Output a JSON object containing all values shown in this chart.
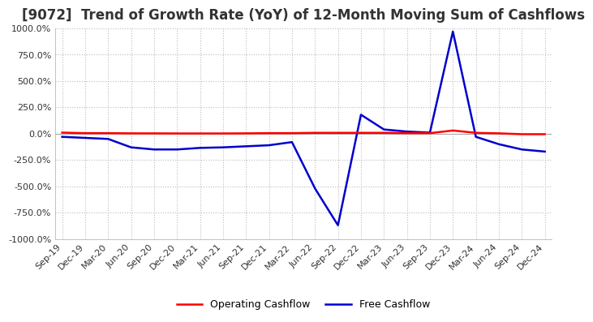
{
  "title": "[9072]  Trend of Growth Rate (YoY) of 12-Month Moving Sum of Cashflows",
  "title_fontsize": 12,
  "ylim": [
    -1000,
    1000
  ],
  "yticks": [
    -1000,
    -750,
    -500,
    -250,
    0,
    250,
    500,
    750,
    1000
  ],
  "x_labels": [
    "Sep-19",
    "Dec-19",
    "Mar-20",
    "Jun-20",
    "Sep-20",
    "Dec-20",
    "Mar-21",
    "Jun-21",
    "Sep-21",
    "Dec-21",
    "Mar-22",
    "Jun-22",
    "Sep-22",
    "Dec-22",
    "Mar-23",
    "Jun-23",
    "Sep-23",
    "Dec-23",
    "Mar-24",
    "Jun-24",
    "Sep-24",
    "Dec-24"
  ],
  "operating_cashflow": [
    10,
    5,
    5,
    3,
    3,
    2,
    2,
    2,
    3,
    5,
    5,
    8,
    8,
    8,
    8,
    5,
    5,
    30,
    8,
    3,
    -5,
    -5
  ],
  "free_cashflow": [
    -30,
    -40,
    -50,
    -130,
    -150,
    -150,
    -135,
    -130,
    -120,
    -110,
    -80,
    -520,
    -870,
    180,
    40,
    20,
    10,
    970,
    -30,
    -100,
    -150,
    -170
  ],
  "op_color": "#ff0000",
  "fc_color": "#0000cd",
  "background_color": "#ffffff",
  "grid_color": "#bbbbbb",
  "grid_style": "dotted",
  "legend_labels": [
    "Operating Cashflow",
    "Free Cashflow"
  ]
}
